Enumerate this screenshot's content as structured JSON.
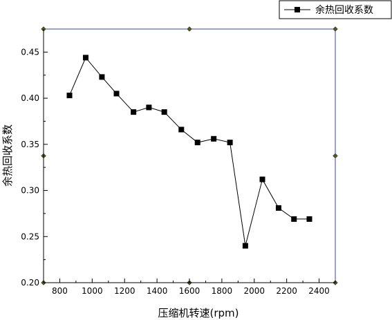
{
  "chart_data": {
    "type": "line",
    "title": "",
    "xlabel": "压缩机转速(rpm)",
    "ylabel": "余热回收系数",
    "xlim": [
      700,
      2500
    ],
    "ylim": [
      0.2,
      0.475
    ],
    "x_ticks": [
      800,
      1000,
      1200,
      1400,
      1600,
      1800,
      2000,
      2200,
      2400
    ],
    "x_tick_labels": [
      "800",
      "1000",
      "1200",
      "1400",
      "1600",
      "1800",
      "2000",
      "2200",
      "2400"
    ],
    "y_ticks": [
      0.2,
      0.25,
      0.3,
      0.35,
      0.4,
      0.45
    ],
    "y_tick_labels": [
      "0.20",
      "0.25",
      "0.30",
      "0.35",
      "0.40",
      "0.45"
    ],
    "grid": false,
    "legend_position": "top-right",
    "series": [
      {
        "name": "余热回收系数",
        "marker": "square",
        "color": "#000000",
        "x": [
          860,
          960,
          1060,
          1150,
          1255,
          1350,
          1445,
          1550,
          1650,
          1750,
          1850,
          1945,
          2050,
          2150,
          2245,
          2340
        ],
        "y": [
          0.403,
          0.444,
          0.423,
          0.405,
          0.385,
          0.39,
          0.385,
          0.366,
          0.352,
          0.356,
          0.352,
          0.24,
          0.312,
          0.281,
          0.269,
          0.269
        ]
      }
    ]
  },
  "colors": {
    "frame": "#3344aa",
    "line": "#000000",
    "corner_marker": "#555522"
  }
}
